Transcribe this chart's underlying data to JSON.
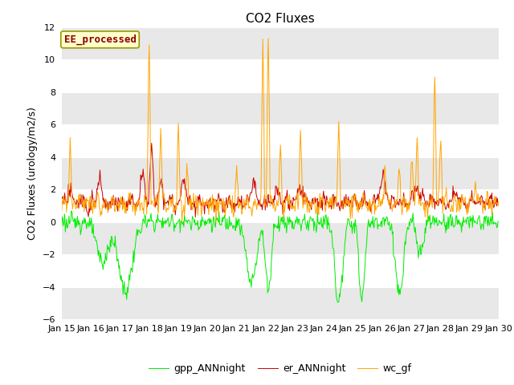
{
  "title": "CO2 Fluxes",
  "ylabel": "CO2 Fluxes (urology/m2/s)",
  "ylim": [
    -6,
    12
  ],
  "yticks": [
    -6,
    -4,
    -2,
    0,
    2,
    4,
    6,
    8,
    10,
    12
  ],
  "x_labels": [
    "Jan 15",
    "Jan 16",
    "Jan 17",
    "Jan 18",
    "Jan 19",
    "Jan 20",
    "Jan 21",
    "Jan 22",
    "Jan 23",
    "Jan 24",
    "Jan 25",
    "Jan 26",
    "Jan 27",
    "Jan 28",
    "Jan 29",
    "Jan 30"
  ],
  "n_points": 720,
  "annotation_text": "EE_processed",
  "annotation_color": "#8B0000",
  "annotation_bg": "#FFFFCC",
  "annotation_border": "#999900",
  "gpp_color": "#00EE00",
  "er_color": "#CC0000",
  "wc_color": "#FFA500",
  "legend_labels": [
    "gpp_ANNnight",
    "er_ANNnight",
    "wc_gf"
  ],
  "bg_light": "#FFFFFF",
  "bg_dark": "#E8E8E8",
  "title_fontsize": 11,
  "axis_fontsize": 9,
  "tick_fontsize": 8,
  "line_width": 0.7
}
